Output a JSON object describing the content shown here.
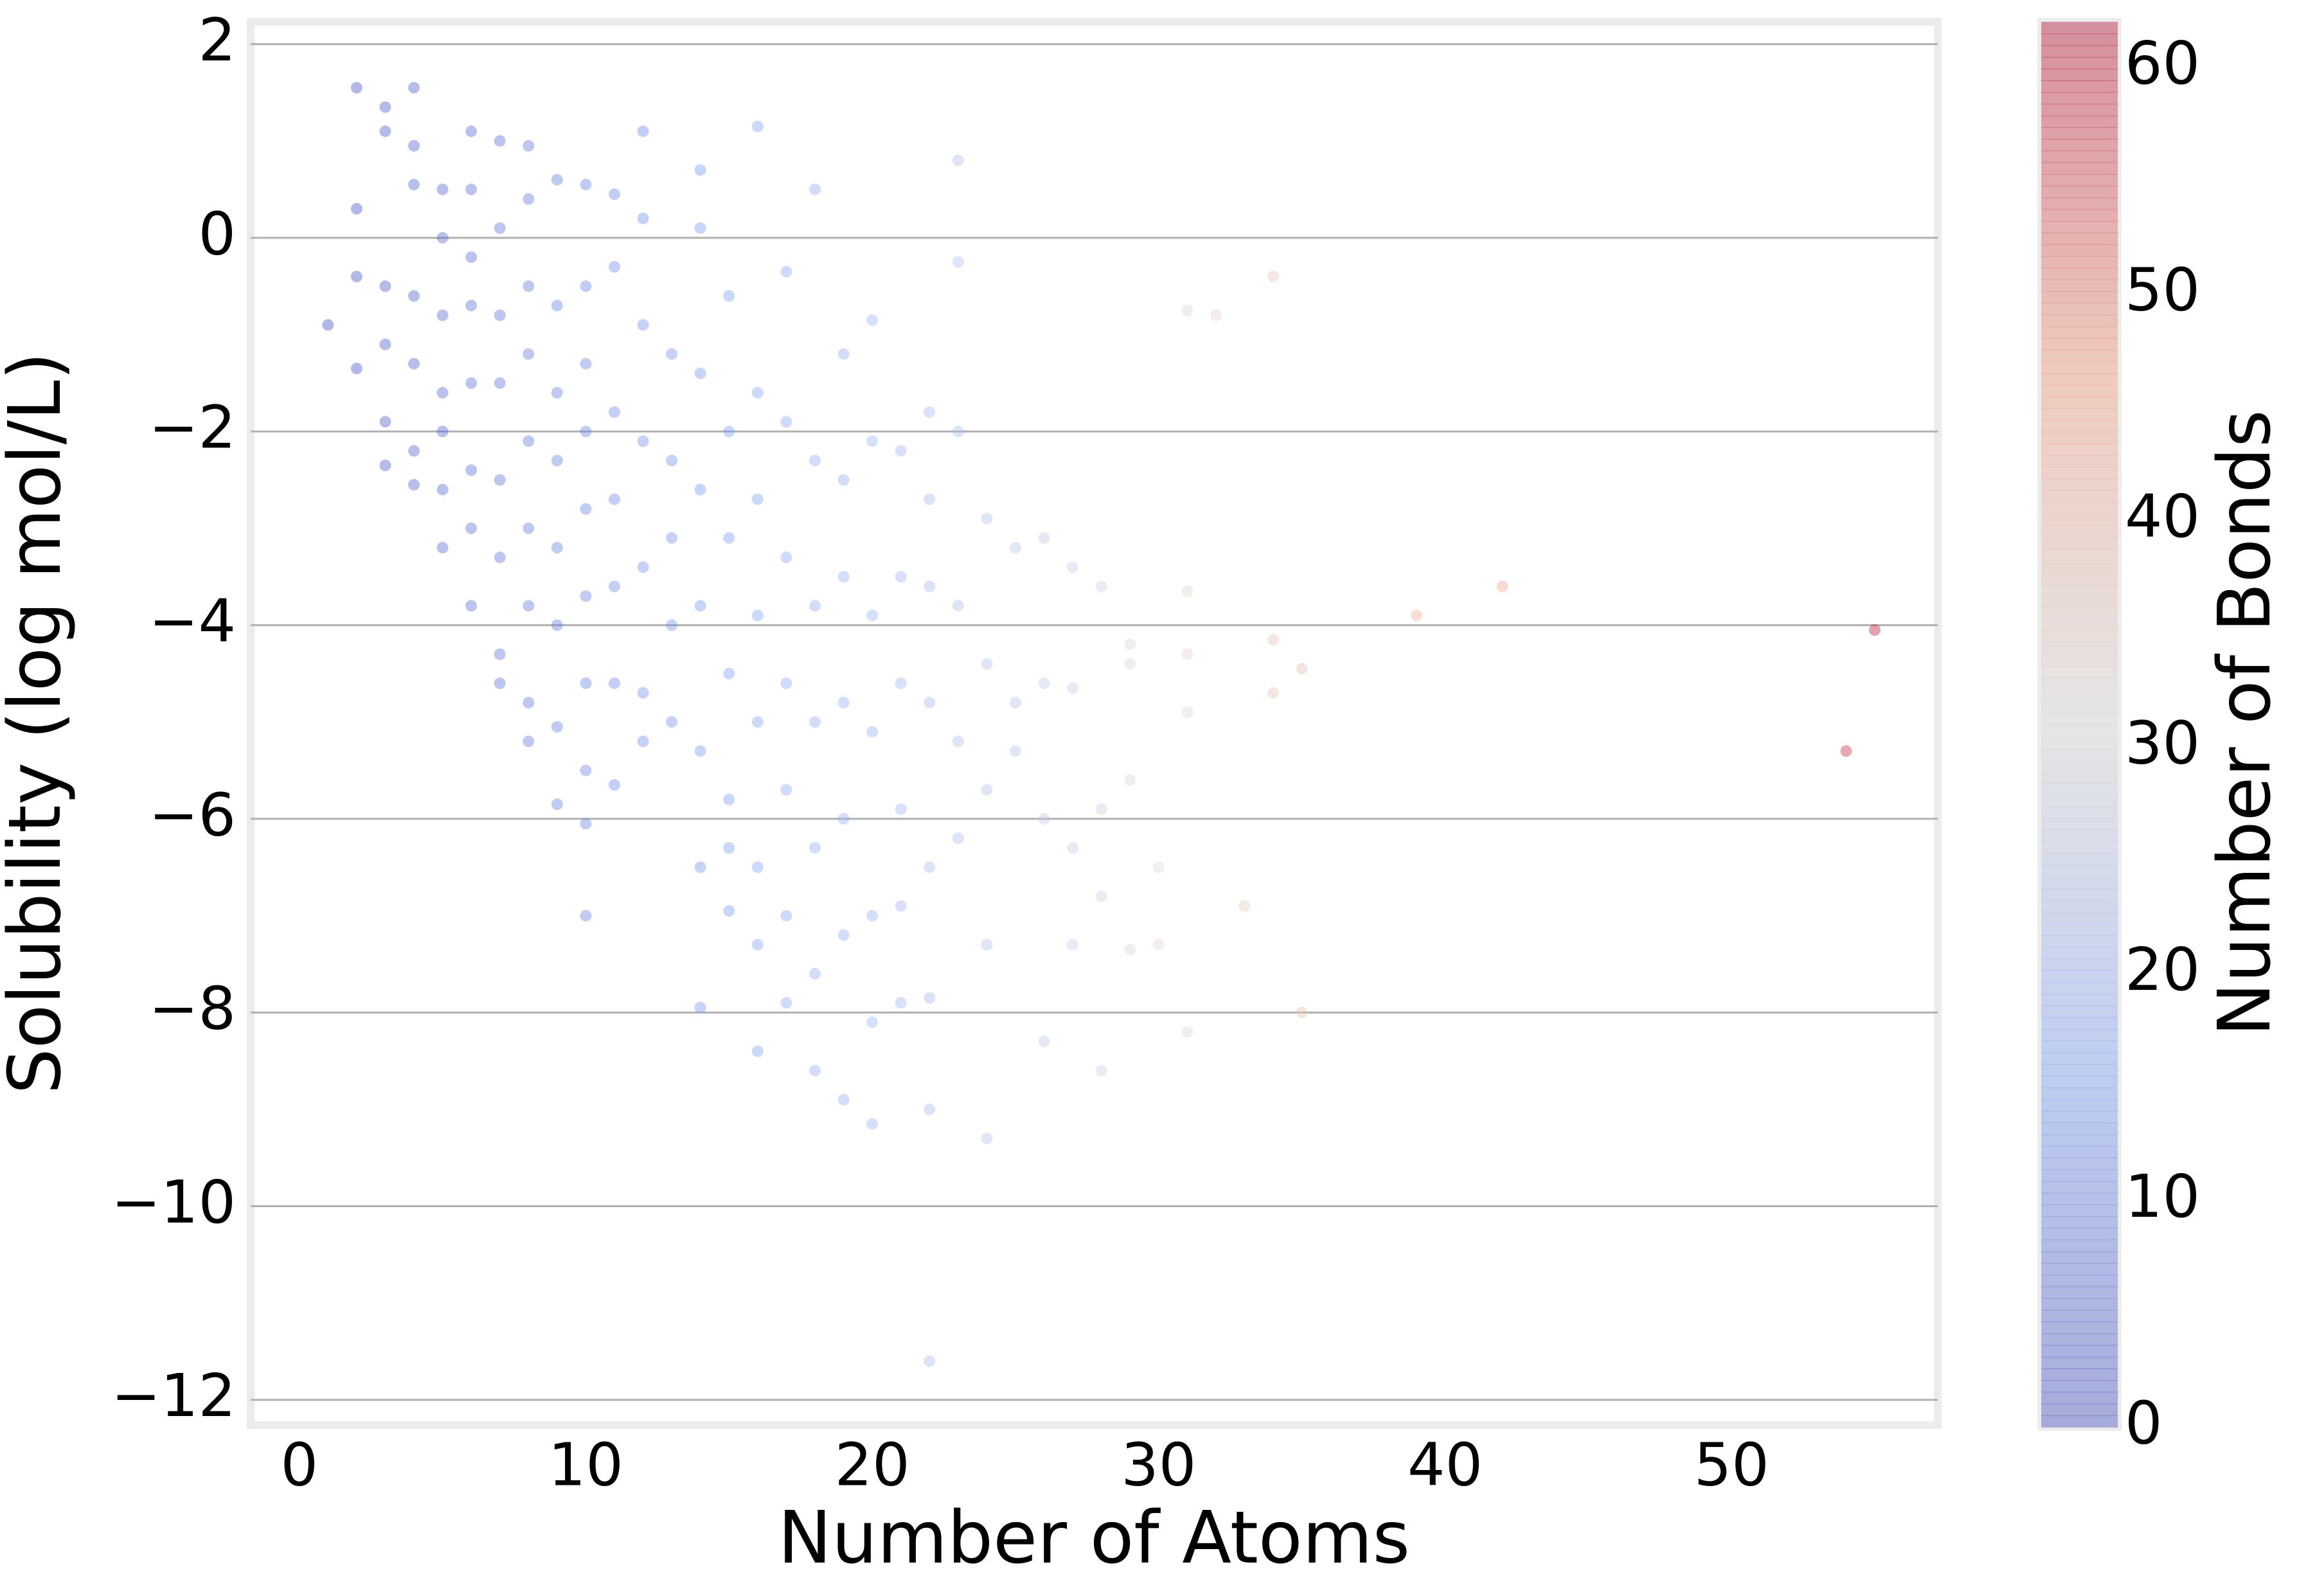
{
  "chart_data": {
    "type": "scatter",
    "x_label": "Number of Atoms",
    "y_label": "Solubility (log mol/L)",
    "colorbar_label": "Number of Bonds",
    "colormap": [
      "#3b4cc0",
      "#7b9ff9",
      "#dddcdc",
      "#f49a7b",
      "#b40426"
    ],
    "alpha": 0.4,
    "grid": true,
    "xlim": [
      -1.7,
      57.2
    ],
    "ylim": [
      -12.26,
      2.23
    ],
    "clim": [
      0,
      62
    ],
    "xticks": [
      0,
      10,
      20,
      30,
      40,
      50
    ],
    "yticks": [
      {
        "value": -12,
        "label": "−12"
      },
      {
        "value": -10,
        "label": "−10"
      },
      {
        "value": -8,
        "label": "−8"
      },
      {
        "value": -6,
        "label": "−6"
      },
      {
        "value": -4,
        "label": "−4"
      },
      {
        "value": -2,
        "label": "−2"
      },
      0,
      2
    ],
    "cticks": [
      0,
      10,
      20,
      30,
      40,
      50,
      60
    ],
    "x": [
      1,
      2,
      2,
      2,
      2,
      3,
      3,
      3,
      3,
      3,
      3,
      4,
      4,
      4,
      4,
      4,
      4,
      4,
      5,
      5,
      5,
      5,
      5,
      5,
      5,
      6,
      6,
      6,
      6,
      6,
      6,
      6,
      6,
      7,
      7,
      7,
      7,
      7,
      7,
      7,
      7,
      8,
      8,
      8,
      8,
      8,
      8,
      8,
      8,
      8,
      9,
      9,
      9,
      9,
      9,
      9,
      9,
      9,
      10,
      10,
      10,
      10,
      10,
      10,
      10,
      10,
      10,
      10,
      11,
      11,
      11,
      11,
      11,
      11,
      11,
      12,
      12,
      12,
      12,
      12,
      12,
      12,
      13,
      13,
      13,
      13,
      13,
      14,
      14,
      14,
      14,
      14,
      14,
      14,
      14,
      15,
      15,
      15,
      15,
      15,
      15,
      15,
      16,
      16,
      16,
      16,
      16,
      16,
      16,
      16,
      17,
      17,
      17,
      17,
      17,
      17,
      17,
      18,
      18,
      18,
      18,
      18,
      18,
      18,
      19,
      19,
      19,
      19,
      19,
      19,
      19,
      20,
      20,
      20,
      20,
      20,
      20,
      20,
      21,
      21,
      21,
      21,
      21,
      21,
      22,
      22,
      22,
      22,
      22,
      22,
      22,
      22,
      23,
      23,
      23,
      23,
      23,
      23,
      24,
      24,
      24,
      24,
      24,
      25,
      25,
      25,
      26,
      26,
      26,
      26,
      27,
      27,
      27,
      27,
      28,
      28,
      28,
      28,
      29,
      29,
      29,
      29,
      30,
      30,
      31,
      31,
      31,
      31,
      31,
      32,
      33,
      34,
      34,
      34,
      35,
      35,
      39,
      42,
      54,
      55
    ],
    "values": [
      -0.9,
      1.55,
      0.3,
      -0.4,
      -1.35,
      1.35,
      1.1,
      -0.5,
      -1.1,
      -1.9,
      -2.35,
      1.55,
      0.95,
      0.55,
      -0.6,
      -1.3,
      -2.2,
      -2.55,
      0.5,
      0.0,
      -0.8,
      -1.6,
      -2.0,
      -2.6,
      -3.2,
      1.1,
      0.5,
      -0.2,
      -0.7,
      -1.5,
      -2.4,
      -3.0,
      -3.8,
      1.0,
      0.1,
      -0.8,
      -1.5,
      -2.5,
      -3.3,
      -4.3,
      -4.6,
      0.95,
      0.4,
      -0.5,
      -1.2,
      -2.1,
      -3.0,
      -3.8,
      -4.8,
      -5.2,
      0.6,
      -0.7,
      -1.6,
      -2.3,
      -3.2,
      -4.0,
      -5.05,
      -5.85,
      0.55,
      -0.5,
      -1.3,
      -2.0,
      -2.8,
      -3.7,
      -4.6,
      -5.5,
      -6.05,
      -7.0,
      0.45,
      -0.3,
      -1.8,
      -2.7,
      -3.6,
      -4.6,
      -5.65,
      1.1,
      0.2,
      -0.9,
      -2.1,
      -3.4,
      -4.7,
      -5.2,
      -1.2,
      -2.3,
      -3.1,
      -4.0,
      -5.0,
      0.7,
      0.1,
      -1.4,
      -2.6,
      -3.8,
      -5.3,
      -6.5,
      -7.95,
      -0.6,
      -2.0,
      -3.1,
      -4.5,
      -5.8,
      -6.3,
      -6.95,
      1.15,
      -1.6,
      -2.7,
      -3.9,
      -5.0,
      -6.5,
      -7.3,
      -8.4,
      -0.35,
      -1.9,
      -3.3,
      -4.6,
      -5.7,
      -7.0,
      -7.9,
      0.5,
      -2.3,
      -3.8,
      -5.0,
      -6.3,
      -7.6,
      -8.6,
      -1.2,
      -2.5,
      -3.5,
      -4.8,
      -6.0,
      -7.2,
      -8.9,
      -0.85,
      -2.1,
      -3.9,
      -5.1,
      -7.0,
      -8.1,
      -9.15,
      -2.2,
      -3.5,
      -4.6,
      -5.9,
      -6.9,
      -7.9,
      -1.8,
      -2.7,
      -3.6,
      -4.8,
      -6.5,
      -7.85,
      -9.0,
      -11.6,
      0.8,
      -0.25,
      -2.0,
      -3.8,
      -5.2,
      -6.2,
      -2.9,
      -4.4,
      -5.7,
      -7.3,
      -9.3,
      -3.2,
      -4.8,
      -5.3,
      -3.1,
      -4.6,
      -6.0,
      -8.3,
      -3.4,
      -4.65,
      -6.3,
      -7.3,
      -3.6,
      -5.9,
      -6.8,
      -8.6,
      -4.2,
      -4.4,
      -5.6,
      -7.35,
      -6.5,
      -7.3,
      -0.75,
      -3.65,
      -4.3,
      -4.9,
      -8.2,
      -0.8,
      -6.9,
      -0.4,
      -4.15,
      -4.7,
      -4.45,
      -8.0,
      -3.9,
      -3.6,
      -5.3,
      -4.05
    ],
    "color_values": [
      0,
      1,
      1,
      1,
      1,
      2,
      2,
      2,
      2,
      2,
      2,
      3,
      3,
      4,
      3,
      4,
      4,
      4,
      4,
      5,
      5,
      5,
      5,
      5,
      5,
      5,
      6,
      6,
      6,
      6,
      6,
      6,
      6,
      6,
      7,
      7,
      7,
      7,
      7,
      7,
      7,
      7,
      8,
      8,
      8,
      8,
      8,
      8,
      8,
      8,
      8,
      9,
      9,
      9,
      9,
      9,
      9,
      9,
      9,
      10,
      10,
      10,
      10,
      10,
      10,
      10,
      10,
      10,
      10,
      11,
      11,
      11,
      11,
      11,
      11,
      11,
      12,
      12,
      12,
      12,
      12,
      12,
      13,
      13,
      13,
      13,
      13,
      14,
      14,
      14,
      14,
      14,
      14,
      14,
      14,
      15,
      15,
      15,
      15,
      15,
      15,
      15,
      16,
      16,
      16,
      16,
      16,
      16,
      16,
      16,
      17,
      17,
      17,
      17,
      17,
      17,
      17,
      18,
      18,
      18,
      18,
      18,
      18,
      18,
      19,
      19,
      19,
      19,
      19,
      19,
      19,
      20,
      20,
      20,
      20,
      20,
      20,
      20,
      21,
      21,
      21,
      21,
      21,
      21,
      22,
      22,
      22,
      22,
      22,
      22,
      22,
      22,
      23,
      23,
      23,
      23,
      23,
      23,
      24,
      24,
      24,
      24,
      24,
      25,
      25,
      25,
      26,
      26,
      26,
      26,
      27,
      27,
      27,
      27,
      28,
      28,
      28,
      28,
      30,
      30,
      30,
      30,
      32,
      33,
      33,
      33,
      33,
      33,
      33,
      34,
      36,
      37,
      37,
      37,
      38,
      38,
      42,
      45,
      58,
      60
    ]
  }
}
